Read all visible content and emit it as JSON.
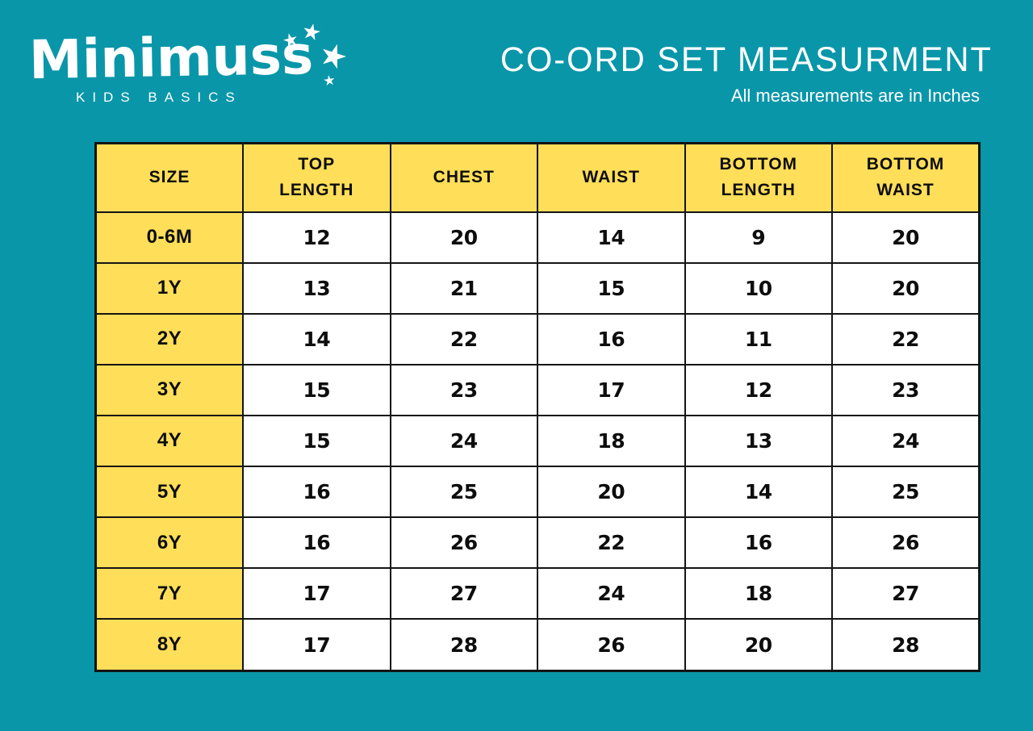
{
  "logo": {
    "name": "Minimuss",
    "tagline": "KIDS BASICS"
  },
  "header": {
    "title": "CO-ORD SET MEASURMENT",
    "subtitle": "All measurements are in Inches"
  },
  "table": {
    "columns": [
      "SIZE",
      "TOP\nLENGTH",
      "CHEST",
      "WAIST",
      "BOTTOM\nLENGTH",
      "BOTTOM\nWAIST"
    ],
    "rows": [
      {
        "size": "0-6M",
        "values": [
          "12",
          "20",
          "14",
          "9",
          "20"
        ]
      },
      {
        "size": "1Y",
        "values": [
          "13",
          "21",
          "15",
          "10",
          "20"
        ]
      },
      {
        "size": "2Y",
        "values": [
          "14",
          "22",
          "16",
          "11",
          "22"
        ]
      },
      {
        "size": "3Y",
        "values": [
          "15",
          "23",
          "17",
          "12",
          "23"
        ]
      },
      {
        "size": "4Y",
        "values": [
          "15",
          "24",
          "18",
          "13",
          "24"
        ]
      },
      {
        "size": "5Y",
        "values": [
          "16",
          "25",
          "20",
          "14",
          "25"
        ]
      },
      {
        "size": "6Y",
        "values": [
          "16",
          "26",
          "22",
          "16",
          "26"
        ]
      },
      {
        "size": "7Y",
        "values": [
          "17",
          "27",
          "24",
          "18",
          "27"
        ]
      },
      {
        "size": "8Y",
        "values": [
          "17",
          "28",
          "26",
          "20",
          "28"
        ]
      }
    ]
  },
  "colors": {
    "background": "#0a96a9",
    "accent_yellow": "#ffde59",
    "border": "#141414",
    "text_dark": "#0d0d0d",
    "text_light": "#ffffff"
  },
  "chart_data": {
    "type": "table",
    "title": "CO-ORD SET MEASURMENT",
    "subtitle": "All measurements are in Inches",
    "units": "Inches",
    "columns": [
      "SIZE",
      "TOP LENGTH",
      "CHEST",
      "WAIST",
      "BOTTOM LENGTH",
      "BOTTOM WAIST"
    ],
    "rows": [
      [
        "0-6M",
        12,
        20,
        14,
        9,
        20
      ],
      [
        "1Y",
        13,
        21,
        15,
        10,
        20
      ],
      [
        "2Y",
        14,
        22,
        16,
        11,
        22
      ],
      [
        "3Y",
        15,
        23,
        17,
        12,
        23
      ],
      [
        "4Y",
        15,
        24,
        18,
        13,
        24
      ],
      [
        "5Y",
        16,
        25,
        20,
        14,
        25
      ],
      [
        "6Y",
        16,
        26,
        22,
        16,
        26
      ],
      [
        "7Y",
        17,
        27,
        24,
        18,
        27
      ],
      [
        "8Y",
        17,
        28,
        26,
        20,
        28
      ]
    ]
  }
}
